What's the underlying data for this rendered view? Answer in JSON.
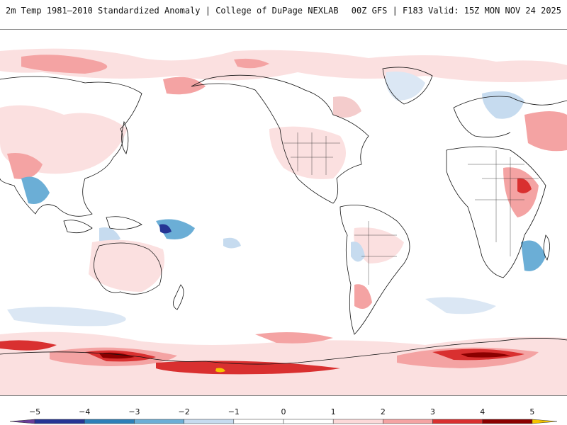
{
  "header": {
    "title": "2m Temp 1981–2010 Standardized Anomaly | College of DuPage NEXLAB",
    "run_info": "00Z GFS | F183 Valid: 15Z MON NOV 24 2025"
  },
  "map": {
    "projection": "equirectangular",
    "center_longitude": -120,
    "field": "2m temperature standardized anomaly"
  },
  "colorbar": {
    "min": -5.5,
    "max": 5.5,
    "ticks": [
      "−5",
      "−4",
      "−3",
      "−2",
      "−1",
      "0",
      "1",
      "2",
      "3",
      "4",
      "5"
    ],
    "tick_values": [
      -5,
      -4,
      -3,
      -2,
      -1,
      0,
      1,
      2,
      3,
      4,
      5
    ],
    "segments": [
      {
        "from": -5.5,
        "to": -5,
        "color": "#6a3d9a"
      },
      {
        "from": -5,
        "to": -4,
        "color": "#253494"
      },
      {
        "from": -4,
        "to": -3,
        "color": "#2c7fb8"
      },
      {
        "from": -3,
        "to": -2,
        "color": "#6baed6"
      },
      {
        "from": -2,
        "to": -1,
        "color": "#c6dbef"
      },
      {
        "from": -1,
        "to": 0,
        "color": "#ffffff"
      },
      {
        "from": 0,
        "to": 1,
        "color": "#ffffff"
      },
      {
        "from": 1,
        "to": 2,
        "color": "#fcd9d9"
      },
      {
        "from": 2,
        "to": 3,
        "color": "#f4a3a3"
      },
      {
        "from": 3,
        "to": 4,
        "color": "#d93030"
      },
      {
        "from": 4,
        "to": 5,
        "color": "#8b0000"
      },
      {
        "from": 5,
        "to": 5.5,
        "color": "#f5c400"
      }
    ]
  }
}
